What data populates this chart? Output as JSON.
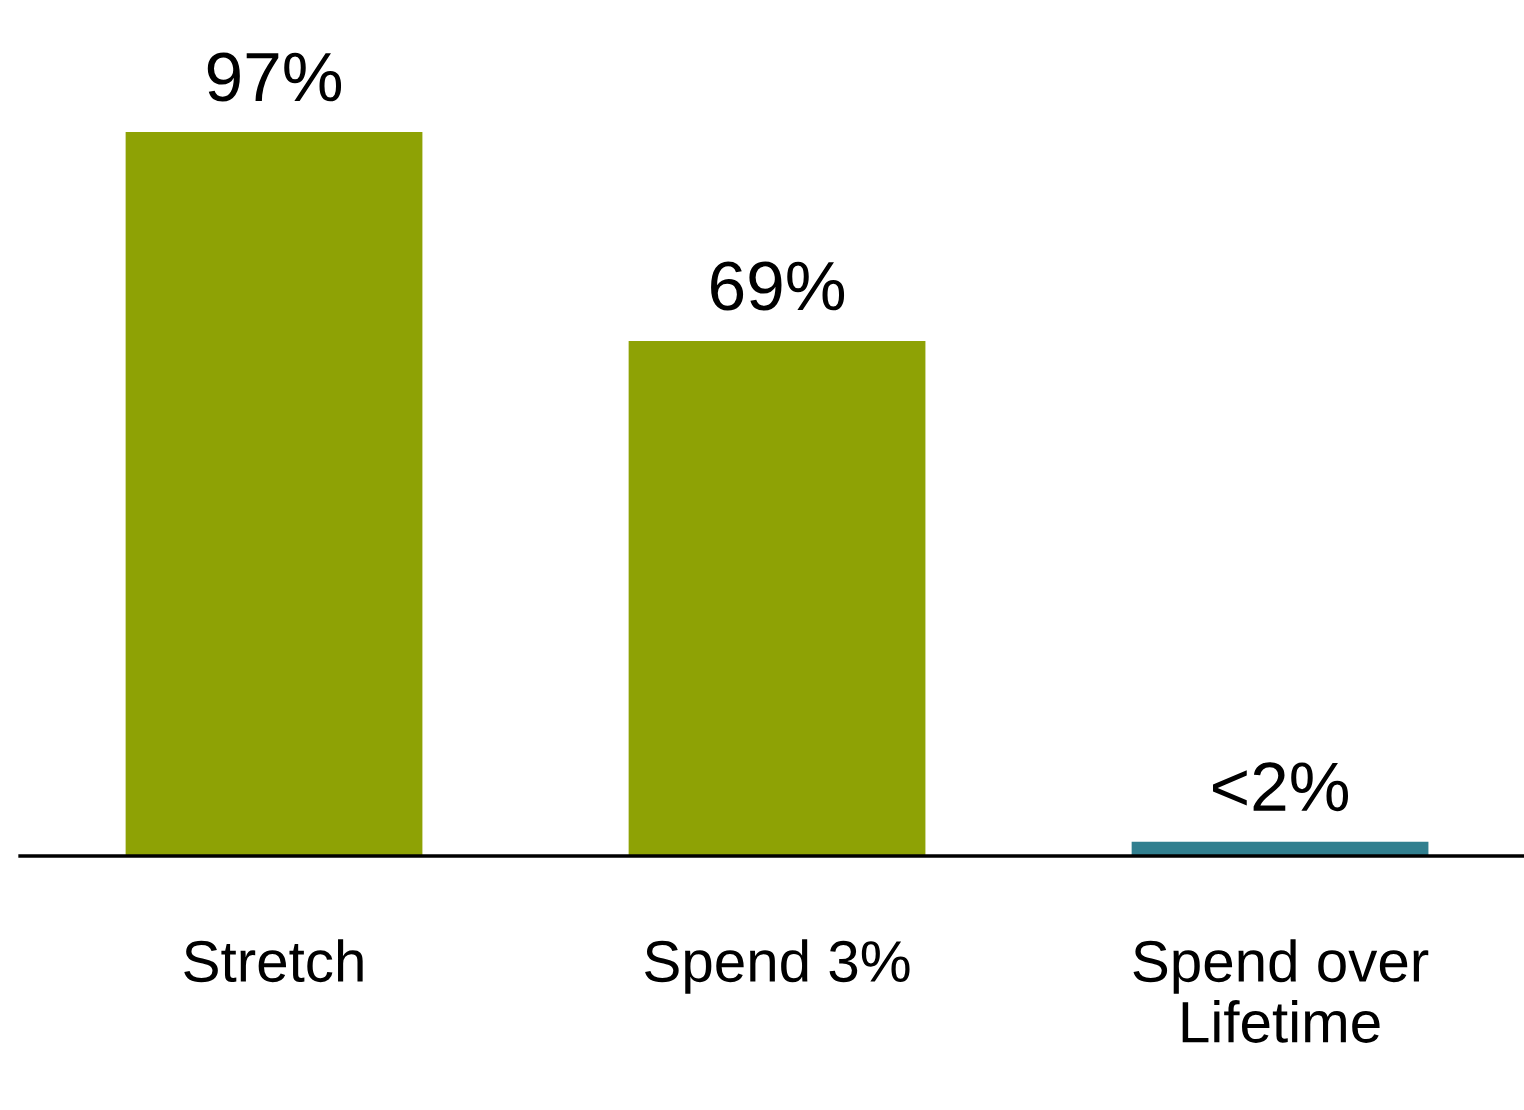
{
  "chart_data": {
    "type": "bar",
    "categories": [
      "Stretch",
      "Spend 3%",
      "Spend over\nLifetime"
    ],
    "values": [
      97,
      69,
      1.9
    ],
    "colors": [
      "#8ea205",
      "#8ea205",
      "#317f8f"
    ],
    "value_labels": [
      "97%",
      "69%",
      "<2%"
    ],
    "tick_labels": "x",
    "grid": false,
    "legend": false
  }
}
